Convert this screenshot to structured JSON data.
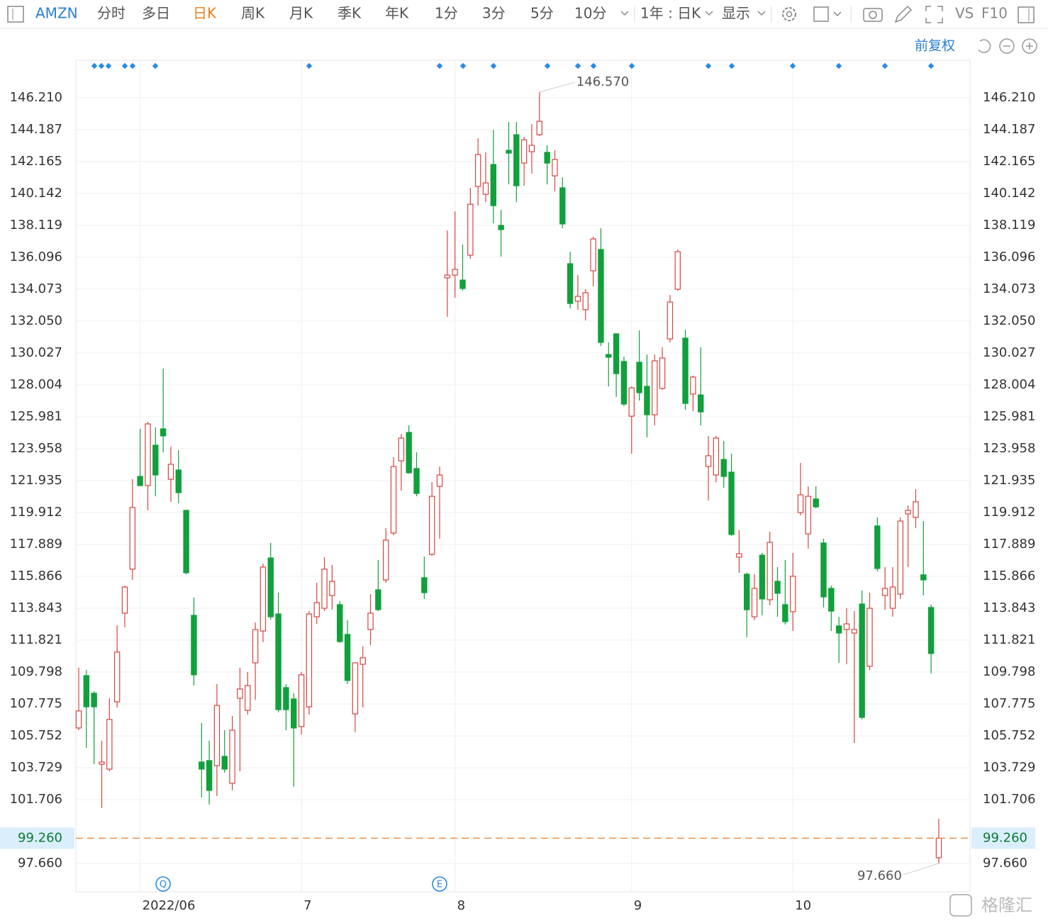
{
  "toolbar": {
    "symbol": "AMZN",
    "tabs": [
      "分时",
      "多日",
      "日K",
      "周K",
      "月K",
      "季K",
      "年K",
      "1分",
      "3分",
      "5分",
      "10分"
    ],
    "period": "1年 : 日K",
    "display": "显示",
    "vs": "VS",
    "f10": "F10",
    "adjust": "前复权"
  },
  "watermark": "格隆汇",
  "events": [
    "Q",
    "E"
  ],
  "chart_data": {
    "type": "candlestick",
    "up_color": "#d6453f",
    "down_color": "#11a03c",
    "grid": true,
    "max_label": "146.570",
    "min_label": "97.660",
    "price_line_label": "99.260",
    "price_line_color": "#e0843a",
    "categories": [
      null,
      null,
      null,
      null,
      null,
      null,
      null,
      null,
      "2022/06",
      null,
      null,
      null,
      null,
      null,
      null,
      null,
      null,
      null,
      null,
      null,
      null,
      null,
      null,
      null,
      null,
      null,
      null,
      null,
      null,
      "7",
      null,
      null,
      null,
      null,
      null,
      null,
      null,
      null,
      null,
      null,
      null,
      null,
      null,
      null,
      null,
      null,
      null,
      null,
      null,
      "8",
      null,
      null,
      null,
      null,
      null,
      null,
      null,
      null,
      null,
      null,
      null,
      null,
      null,
      null,
      null,
      null,
      null,
      null,
      null,
      null,
      null,
      null,
      "9",
      null,
      null,
      null,
      null,
      null,
      null,
      null,
      null,
      null,
      null,
      null,
      null,
      null,
      null,
      null,
      null,
      null,
      null,
      null,
      null,
      "10",
      null,
      null,
      null,
      null,
      null,
      null,
      null,
      null,
      null,
      null,
      null,
      null,
      null,
      null,
      null,
      null,
      null,
      null,
      null
    ],
    "open": [
      106.25,
      109.57,
      108.45,
      103.95,
      103.64,
      107.91,
      113.53,
      116.32,
      122.2,
      121.62,
      124.18,
      125.22,
      122.02,
      122.61,
      120.05,
      113.39,
      104.09,
      104.18,
      103.86,
      104.45,
      102.74,
      108.13,
      107.37,
      110.38,
      112.4,
      117.03,
      113.48,
      108.81,
      108.09,
      106.34,
      107.59,
      113.3,
      113.84,
      114.65,
      114.07,
      112.18,
      107.14,
      110.29,
      112.49,
      115.01,
      115.64,
      118.61,
      123.19,
      124.99,
      122.7,
      115.78,
      117.26,
      121.57,
      134.79,
      134.97,
      134.65,
      136.23,
      140.59,
      140.09,
      141.98,
      138.12,
      142.88,
      143.87,
      142.07,
      142.79,
      143.87,
      142.75,
      141.26,
      140.5,
      135.69,
      133.31,
      132.77,
      135.24,
      136.59,
      129.93,
      131.24,
      129.49,
      126.02,
      129.44,
      127.91,
      126.11,
      127.78,
      130.92,
      134.07,
      130.97,
      127.42,
      127.37,
      122.83,
      122.29,
      123.28,
      122.47,
      117.08,
      116.0,
      113.3,
      117.21,
      114.38,
      115.55,
      114.07,
      113.62,
      119.91,
      118.56,
      120.77,
      117.98,
      115.1,
      112.72,
      112.49,
      112.27,
      114.11,
      110.16,
      119.06,
      114.65,
      113.84,
      114.74,
      119.82,
      119.6,
      115.96,
      113.89,
      98.02
    ],
    "high": [
      110.07,
      109.93,
      108.58,
      105.44,
      108.13,
      112.76,
      115.28,
      122.02,
      125.22,
      125.66,
      125.31,
      129.04,
      124.09,
      123.87,
      120.05,
      114.52,
      106.56,
      105.44,
      109.03,
      106.11,
      107.01,
      110.07,
      109.8,
      112.94,
      116.67,
      117.98,
      114.83,
      109.03,
      108.45,
      109.8,
      113.66,
      115.46,
      117.08,
      116.58,
      114.29,
      113.08,
      110.38,
      111.42,
      114.74,
      116.9,
      118.92,
      123.42,
      124.9,
      125.44,
      123.73,
      117.12,
      121.84,
      122.83,
      137.8,
      139.01,
      136.9,
      140.5,
      143.64,
      142.75,
      144.18,
      139.1,
      144.68,
      144.68,
      143.73,
      144.54,
      146.57,
      143.2,
      142.88,
      141.17,
      136.45,
      134.97,
      134.07,
      137.4,
      137.94,
      130.7,
      131.28,
      129.8,
      127.91,
      131.46,
      129.93,
      129.93,
      130.38,
      133.71,
      136.59,
      131.51,
      128.59,
      130.38,
      124.77,
      124.77,
      124.45,
      123.64,
      118.79,
      116.09,
      116.0,
      117.35,
      118.7,
      116.45,
      116.9,
      117.35,
      123.06,
      121.57,
      121.57,
      118.25,
      115.28,
      113.3,
      113.84,
      113.66,
      114.97,
      114.83,
      119.6,
      116.45,
      116.45,
      119.6,
      120.36,
      121.39,
      119.37,
      114.07,
      100.49
    ],
    "low": [
      106.11,
      104.99,
      103.95,
      101.17,
      103.5,
      107.55,
      112.63,
      115.64,
      121.57,
      120.05,
      120.94,
      123.73,
      120.59,
      120.5,
      116.0,
      108.94,
      101.84,
      101.39,
      101.93,
      103.41,
      102.29,
      103.5,
      107.1,
      108.04,
      111.69,
      113.12,
      107.24,
      106.11,
      102.52,
      105.84,
      107.1,
      112.85,
      113.66,
      113.75,
      111.64,
      109.03,
      105.98,
      107.55,
      111.51,
      113.66,
      115.46,
      118.47,
      121.3,
      122.38,
      120.94,
      114.43,
      117.17,
      118.25,
      132.32,
      133.53,
      133.98,
      136.0,
      139.37,
      139.6,
      138.25,
      136.14,
      140.72,
      139.6,
      140.63,
      141.4,
      143.78,
      140.72,
      140.27,
      137.94,
      132.86,
      132.77,
      132.09,
      134.25,
      130.47,
      127.91,
      127.24,
      126.65,
      123.64,
      127.01,
      124.68,
      125.44,
      127.69,
      130.7,
      133.98,
      126.43,
      126.34,
      125.44,
      120.67,
      121.84,
      121.48,
      118.43,
      116.09,
      112.0,
      113.08,
      113.39,
      114.02,
      113.3,
      112.81,
      112.4,
      119.73,
      117.62,
      120.18,
      113.89,
      112.4,
      110.38,
      110.29,
      105.3,
      106.79,
      109.93,
      116.18,
      113.75,
      113.3,
      114.43,
      116.45,
      118.92,
      114.65,
      109.71,
      97.66
    ],
    "close": [
      107.33,
      107.59,
      107.59,
      104.09,
      106.79,
      111.06,
      115.19,
      120.23,
      121.62,
      125.53,
      122.29,
      124.77,
      122.97,
      121.17,
      116.09,
      109.62,
      103.64,
      102.29,
      107.68,
      103.64,
      106.11,
      108.72,
      108.94,
      112.49,
      116.45,
      113.3,
      107.41,
      107.41,
      106.25,
      109.62,
      113.48,
      114.2,
      116.32,
      115.55,
      111.73,
      109.26,
      110.38,
      110.7,
      113.53,
      113.75,
      118.16,
      122.83,
      124.63,
      122.43,
      121.12,
      114.83,
      120.94,
      122.29,
      134.97,
      135.33,
      134.12,
      139.46,
      142.61,
      140.81,
      139.37,
      137.85,
      142.7,
      140.63,
      143.55,
      143.2,
      144.72,
      142.07,
      142.3,
      138.21,
      133.17,
      133.62,
      133.85,
      137.26,
      130.7,
      129.76,
      128.72,
      126.79,
      127.82,
      127.51,
      126.11,
      129.53,
      129.71,
      133.26,
      136.45,
      126.83,
      128.5,
      126.29,
      123.51,
      124.63,
      122.2,
      118.52,
      117.3,
      113.75,
      115.1,
      114.43,
      118.02,
      114.79,
      112.99,
      115.87,
      121.03,
      120.94,
      120.27,
      114.56,
      113.66,
      112.27,
      112.85,
      112.49,
      106.92,
      113.84,
      116.36,
      115.1,
      115.19,
      119.37,
      120.05,
      120.59,
      115.64,
      110.97,
      99.26
    ],
    "ylim": [
      95.86,
      148.59
    ],
    "yticks": [
      {
        "value": 97.66,
        "label": "97.660"
      },
      101.706,
      103.729,
      105.752,
      107.775,
      109.798,
      111.821,
      113.843,
      115.866,
      117.889,
      119.912,
      121.935,
      123.958,
      125.981,
      128.004,
      130.027,
      {
        "value": 132.05,
        "label": "132.050"
      },
      134.073,
      136.096,
      138.119,
      140.142,
      142.165,
      144.187,
      {
        "value": 146.21,
        "label": "146.210"
      }
    ]
  }
}
